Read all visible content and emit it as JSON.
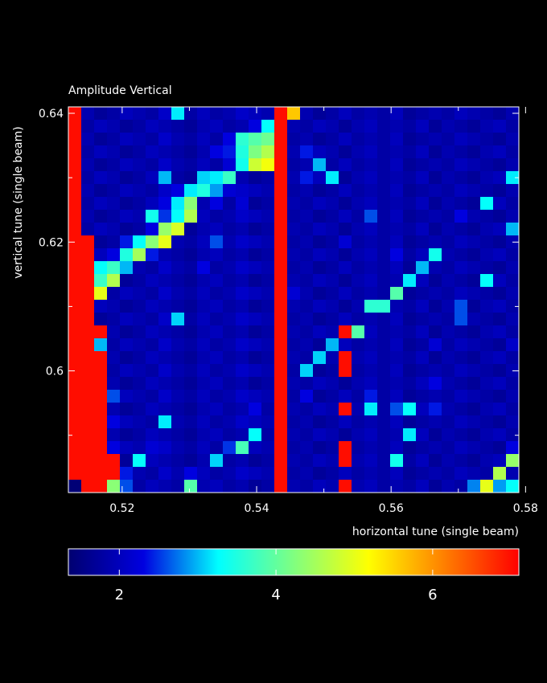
{
  "chart_data": {
    "type": "heatmap",
    "title": "Amplitude Vertical",
    "xlabel": "horizontal tune (single beam)",
    "ylabel": "vertical tune (single beam)",
    "xlim": [
      0.512,
      0.579
    ],
    "ylim": [
      0.5811,
      0.641
    ],
    "xticks": [
      0.52,
      0.54,
      0.56,
      0.58
    ],
    "xminor_ticks": [
      0.53,
      0.55,
      0.57
    ],
    "yticks": [
      0.6,
      0.62,
      0.64
    ],
    "yminor_ticks": [
      0.59,
      0.61,
      0.63
    ],
    "clim": [
      1.35,
      7.1
    ],
    "cticks": [
      2,
      4,
      6
    ],
    "colormap": [
      "#000070",
      "#0000e0",
      "#00ffff",
      "#80ff80",
      "#ffff00",
      "#ff8000",
      "#ff0000"
    ],
    "z": [
      [
        7,
        1.9,
        1.7,
        1.8,
        2.0,
        1.9,
        1.8,
        2.1,
        3.2,
        1.8,
        2.0,
        1.8,
        1.9,
        2.1,
        2.0,
        1.9,
        7,
        5.6,
        1.9,
        1.7,
        1.8,
        2.0,
        1.8,
        1.9,
        1.8,
        2.0,
        1.7,
        1.8,
        1.9,
        1.8,
        2.0,
        1.9,
        1.8,
        1.7,
        1.9
      ],
      [
        7,
        1.8,
        2.0,
        1.9,
        1.7,
        1.8,
        2.0,
        1.9,
        1.8,
        1.7,
        1.9,
        2.0,
        1.8,
        1.9,
        2.3,
        3.3,
        7,
        1.9,
        1.8,
        2.0,
        1.9,
        1.7,
        1.9,
        2.0,
        1.8,
        1.9,
        1.8,
        2.0,
        1.7,
        1.9,
        1.8,
        1.7,
        1.9,
        2.0,
        1.8
      ],
      [
        7,
        1.9,
        1.7,
        1.8,
        2.0,
        1.9,
        1.8,
        2.1,
        1.9,
        1.8,
        2.0,
        1.8,
        2.3,
        3.6,
        3.9,
        4.1,
        7,
        1.8,
        1.9,
        1.7,
        1.8,
        2.0,
        1.8,
        1.9,
        1.8,
        2.0,
        1.7,
        1.8,
        1.9,
        1.8,
        2.0,
        1.9,
        1.8,
        1.7,
        1.9
      ],
      [
        7,
        1.8,
        2.0,
        1.9,
        1.7,
        1.8,
        2.0,
        1.9,
        1.8,
        1.7,
        1.9,
        2.3,
        2.4,
        3.5,
        4.2,
        4.6,
        7,
        1.9,
        2.4,
        2.0,
        1.9,
        1.7,
        1.9,
        2.0,
        1.8,
        1.9,
        1.8,
        2.0,
        1.7,
        1.9,
        1.8,
        1.7,
        1.9,
        2.0,
        1.8
      ],
      [
        7,
        1.9,
        1.7,
        1.8,
        2.0,
        1.9,
        1.8,
        2.1,
        1.9,
        1.8,
        2.0,
        1.8,
        2.2,
        3.4,
        4.8,
        5.1,
        7,
        1.8,
        1.9,
        3.0,
        1.8,
        2.0,
        1.8,
        1.9,
        1.8,
        2.0,
        1.7,
        1.8,
        1.9,
        1.8,
        2.0,
        1.9,
        1.8,
        1.7,
        1.9
      ],
      [
        7,
        1.8,
        2.0,
        1.9,
        1.7,
        1.8,
        2.0,
        3.0,
        1.8,
        1.7,
        3.1,
        3.2,
        3.7,
        1.9,
        1.7,
        1.8,
        7,
        1.9,
        2.4,
        2.0,
        3.2,
        1.7,
        1.9,
        2.0,
        1.8,
        1.9,
        1.8,
        2.0,
        1.7,
        1.9,
        1.8,
        1.7,
        1.9,
        2.0,
        3.2
      ],
      [
        7,
        1.9,
        1.7,
        1.8,
        2.0,
        1.9,
        1.8,
        2.1,
        2.3,
        3.2,
        3.5,
        2.9,
        2.2,
        2.1,
        2.0,
        1.9,
        7,
        1.8,
        1.9,
        1.7,
        1.8,
        2.0,
        1.8,
        1.9,
        1.8,
        2.0,
        1.7,
        1.8,
        1.9,
        1.8,
        2.0,
        1.9,
        1.8,
        1.7,
        1.9
      ],
      [
        7,
        1.8,
        2.0,
        1.9,
        1.7,
        1.8,
        2.0,
        2.3,
        3.2,
        4.3,
        1.9,
        2.3,
        1.8,
        2.2,
        1.7,
        1.8,
        7,
        1.9,
        1.8,
        2.0,
        1.9,
        1.7,
        1.9,
        2.0,
        1.8,
        1.9,
        1.8,
        2.0,
        1.7,
        1.9,
        1.8,
        1.7,
        3.3,
        2.0,
        1.8
      ],
      [
        7,
        1.9,
        1.7,
        1.8,
        2.0,
        1.9,
        3.4,
        2.5,
        3.3,
        4.6,
        2.0,
        1.8,
        1.9,
        2.1,
        2.0,
        1.9,
        7,
        1.8,
        1.9,
        1.7,
        1.8,
        2.0,
        1.8,
        2.6,
        1.8,
        2.0,
        1.7,
        1.8,
        1.9,
        1.8,
        2.3,
        1.9,
        1.8,
        1.7,
        1.9
      ],
      [
        7,
        1.8,
        2.0,
        1.9,
        1.7,
        1.8,
        2.3,
        4.4,
        4.9,
        1.7,
        1.9,
        2.0,
        1.8,
        1.9,
        1.7,
        1.8,
        7,
        1.9,
        1.8,
        2.0,
        1.9,
        1.7,
        1.9,
        2.0,
        1.8,
        1.9,
        1.8,
        2.0,
        1.7,
        1.9,
        1.8,
        1.7,
        1.9,
        2.0,
        3.0
      ],
      [
        7,
        7,
        1.7,
        1.8,
        2.4,
        3.3,
        4.3,
        5.0,
        1.9,
        1.8,
        2.0,
        2.6,
        1.9,
        2.1,
        2.0,
        1.9,
        7,
        1.8,
        1.9,
        1.7,
        1.8,
        2.2,
        1.8,
        1.9,
        1.8,
        2.0,
        1.7,
        1.8,
        1.9,
        1.8,
        2.0,
        1.9,
        1.8,
        1.7,
        1.9
      ],
      [
        7,
        7,
        2.0,
        2.3,
        3.5,
        4.5,
        2.4,
        1.9,
        1.8,
        1.7,
        1.9,
        2.0,
        1.8,
        1.9,
        1.7,
        1.8,
        7,
        1.9,
        1.8,
        2.0,
        1.9,
        1.7,
        1.9,
        2.0,
        1.8,
        2.3,
        1.8,
        2.0,
        3.4,
        1.9,
        1.8,
        1.7,
        1.9,
        2.0,
        1.8
      ],
      [
        7,
        7,
        3.3,
        3.7,
        3.0,
        1.9,
        1.8,
        2.1,
        1.9,
        1.8,
        2.3,
        1.8,
        1.9,
        2.1,
        2.0,
        1.9,
        7,
        1.8,
        1.9,
        1.7,
        1.8,
        2.0,
        1.8,
        1.9,
        1.8,
        2.0,
        1.7,
        3.0,
        1.9,
        1.8,
        2.0,
        1.9,
        1.8,
        1.7,
        1.9
      ],
      [
        7,
        7,
        3.7,
        4.6,
        1.7,
        1.8,
        2.0,
        1.9,
        1.8,
        1.7,
        1.9,
        2.0,
        1.8,
        1.9,
        1.7,
        1.8,
        7,
        1.9,
        1.8,
        2.0,
        1.9,
        1.7,
        1.9,
        2.0,
        1.8,
        1.9,
        3.2,
        2.0,
        1.7,
        1.9,
        1.8,
        1.7,
        3.3,
        2.0,
        1.8
      ],
      [
        7,
        7,
        5.0,
        1.8,
        2.0,
        1.9,
        1.8,
        2.1,
        1.9,
        1.8,
        2.0,
        1.8,
        1.9,
        2.1,
        2.0,
        1.9,
        7,
        2.2,
        1.9,
        1.7,
        1.8,
        2.0,
        1.8,
        1.9,
        1.8,
        3.9,
        1.7,
        1.8,
        1.9,
        1.8,
        2.0,
        1.9,
        1.8,
        1.7,
        1.9
      ],
      [
        7,
        7,
        2.0,
        1.9,
        1.7,
        1.8,
        2.0,
        1.9,
        1.8,
        1.7,
        1.9,
        2.0,
        1.8,
        1.9,
        1.7,
        1.8,
        7,
        1.9,
        1.8,
        2.0,
        1.9,
        1.7,
        1.9,
        3.6,
        3.6,
        1.9,
        1.8,
        2.0,
        1.7,
        1.9,
        2.6,
        1.7,
        1.9,
        2.0,
        1.8
      ],
      [
        7,
        7,
        1.7,
        1.8,
        2.0,
        1.9,
        1.8,
        2.1,
        3.1,
        1.8,
        2.0,
        1.8,
        1.9,
        2.1,
        2.0,
        1.9,
        7,
        1.8,
        1.9,
        1.7,
        1.8,
        2.0,
        1.8,
        1.9,
        1.8,
        2.0,
        1.7,
        1.8,
        1.9,
        1.8,
        2.6,
        1.9,
        1.8,
        1.7,
        1.9
      ],
      [
        7,
        7,
        7,
        1.9,
        1.7,
        1.8,
        2.0,
        1.9,
        1.8,
        1.7,
        1.9,
        2.0,
        1.8,
        1.9,
        1.7,
        1.8,
        7,
        1.9,
        1.8,
        2.0,
        1.9,
        7,
        3.9,
        2.0,
        1.8,
        1.9,
        1.8,
        2.0,
        1.7,
        1.9,
        1.8,
        1.7,
        1.9,
        2.0,
        1.8
      ],
      [
        7,
        7,
        3.0,
        1.8,
        2.0,
        1.9,
        1.8,
        2.1,
        1.9,
        1.8,
        2.0,
        1.8,
        1.9,
        2.1,
        2.0,
        1.9,
        7,
        1.8,
        1.9,
        1.7,
        3.0,
        2.0,
        1.8,
        1.9,
        1.8,
        2.0,
        1.7,
        1.8,
        2.2,
        1.8,
        2.0,
        1.9,
        1.8,
        1.7,
        2.1
      ],
      [
        7,
        7,
        7,
        1.9,
        1.7,
        1.8,
        2.0,
        1.9,
        1.8,
        1.7,
        1.9,
        2.0,
        1.8,
        1.9,
        1.7,
        1.8,
        7,
        1.9,
        1.8,
        3.1,
        1.9,
        7,
        1.9,
        2.0,
        1.8,
        1.9,
        1.8,
        2.0,
        1.7,
        1.9,
        1.8,
        1.7,
        1.9,
        2.0,
        1.8
      ],
      [
        7,
        7,
        7,
        1.8,
        2.0,
        1.9,
        1.8,
        2.1,
        1.9,
        1.8,
        2.0,
        1.8,
        1.9,
        2.1,
        2.0,
        1.9,
        7,
        1.8,
        3.1,
        1.7,
        1.8,
        7,
        1.8,
        1.9,
        1.8,
        2.0,
        1.7,
        1.8,
        1.9,
        1.8,
        2.0,
        1.9,
        1.8,
        1.7,
        1.9
      ],
      [
        7,
        7,
        7,
        1.9,
        1.7,
        1.8,
        2.0,
        1.9,
        1.8,
        1.7,
        1.9,
        2.0,
        1.8,
        1.9,
        1.7,
        1.8,
        7,
        1.9,
        1.8,
        2.0,
        1.9,
        1.7,
        1.9,
        2.0,
        1.8,
        1.9,
        1.8,
        2.0,
        2.3,
        1.9,
        1.8,
        1.7,
        1.9,
        2.0,
        1.8
      ],
      [
        7,
        7,
        7,
        2.6,
        2.0,
        1.9,
        1.8,
        2.1,
        1.9,
        1.8,
        2.0,
        1.8,
        1.9,
        2.1,
        2.0,
        1.9,
        7,
        1.8,
        2.3,
        1.7,
        1.8,
        2.0,
        1.8,
        2.4,
        1.8,
        2.0,
        1.7,
        1.8,
        1.9,
        1.8,
        2.0,
        1.9,
        1.8,
        1.7,
        1.9
      ],
      [
        7,
        7,
        7,
        1.9,
        1.7,
        1.8,
        2.0,
        1.9,
        1.8,
        1.7,
        1.9,
        2.0,
        1.8,
        1.9,
        2.3,
        1.8,
        7,
        1.9,
        1.8,
        2.0,
        1.9,
        7,
        1.9,
        3.2,
        1.8,
        2.6,
        3.3,
        2.0,
        2.4,
        1.9,
        1.8,
        1.7,
        1.9,
        2.0,
        1.8
      ],
      [
        7,
        7,
        7,
        2.3,
        2.0,
        1.9,
        1.8,
        3.2,
        1.9,
        1.8,
        2.0,
        1.8,
        1.9,
        2.1,
        2.0,
        1.9,
        7,
        1.8,
        1.9,
        1.7,
        1.8,
        2.0,
        1.8,
        1.9,
        1.8,
        2.0,
        1.7,
        1.8,
        1.9,
        1.8,
        2.0,
        1.9,
        1.8,
        1.7,
        1.9
      ],
      [
        7,
        7,
        7,
        1.9,
        1.7,
        1.8,
        2.0,
        1.9,
        1.8,
        1.7,
        1.9,
        2.0,
        1.8,
        1.9,
        3.3,
        1.8,
        7,
        1.9,
        1.8,
        2.0,
        1.9,
        1.7,
        1.9,
        2.0,
        1.8,
        1.9,
        3.2,
        2.0,
        1.7,
        1.9,
        1.8,
        1.7,
        1.9,
        2.0,
        1.8
      ],
      [
        7,
        7,
        7,
        2.3,
        2.0,
        1.9,
        2.2,
        2.1,
        1.9,
        1.8,
        2.0,
        1.8,
        2.5,
        3.8,
        2.0,
        1.9,
        7,
        1.8,
        1.9,
        1.7,
        1.8,
        7,
        1.8,
        1.9,
        1.8,
        2.0,
        1.7,
        1.8,
        1.9,
        1.8,
        2.0,
        1.9,
        1.8,
        1.7,
        2.3
      ],
      [
        7,
        7,
        7,
        7,
        1.7,
        3.3,
        2.0,
        1.9,
        1.8,
        1.7,
        1.9,
        3.1,
        1.8,
        1.9,
        1.7,
        1.8,
        7,
        1.9,
        1.8,
        2.0,
        1.9,
        7,
        1.9,
        2.0,
        1.8,
        3.4,
        1.8,
        2.0,
        1.7,
        1.9,
        1.8,
        1.7,
        1.9,
        2.0,
        4.4
      ],
      [
        7,
        7,
        7,
        7,
        2.4,
        1.9,
        1.8,
        2.1,
        1.9,
        2.3,
        2.0,
        1.8,
        1.9,
        2.1,
        2.0,
        1.9,
        7,
        1.8,
        1.9,
        1.7,
        1.8,
        2.0,
        1.8,
        1.9,
        1.8,
        2.0,
        1.7,
        1.8,
        1.9,
        1.8,
        2.0,
        1.9,
        1.8,
        4.6,
        1.9
      ],
      [
        1.4,
        7,
        7,
        4.3,
        2.6,
        1.8,
        2.0,
        1.9,
        1.8,
        3.9,
        1.9,
        2.0,
        1.8,
        1.9,
        1.7,
        1.8,
        7,
        1.9,
        1.8,
        2.0,
        1.9,
        7,
        1.9,
        2.0,
        1.8,
        1.9,
        1.8,
        2.0,
        1.7,
        1.9,
        1.8,
        2.8,
        5.0,
        2.9,
        3.3
      ]
    ]
  }
}
